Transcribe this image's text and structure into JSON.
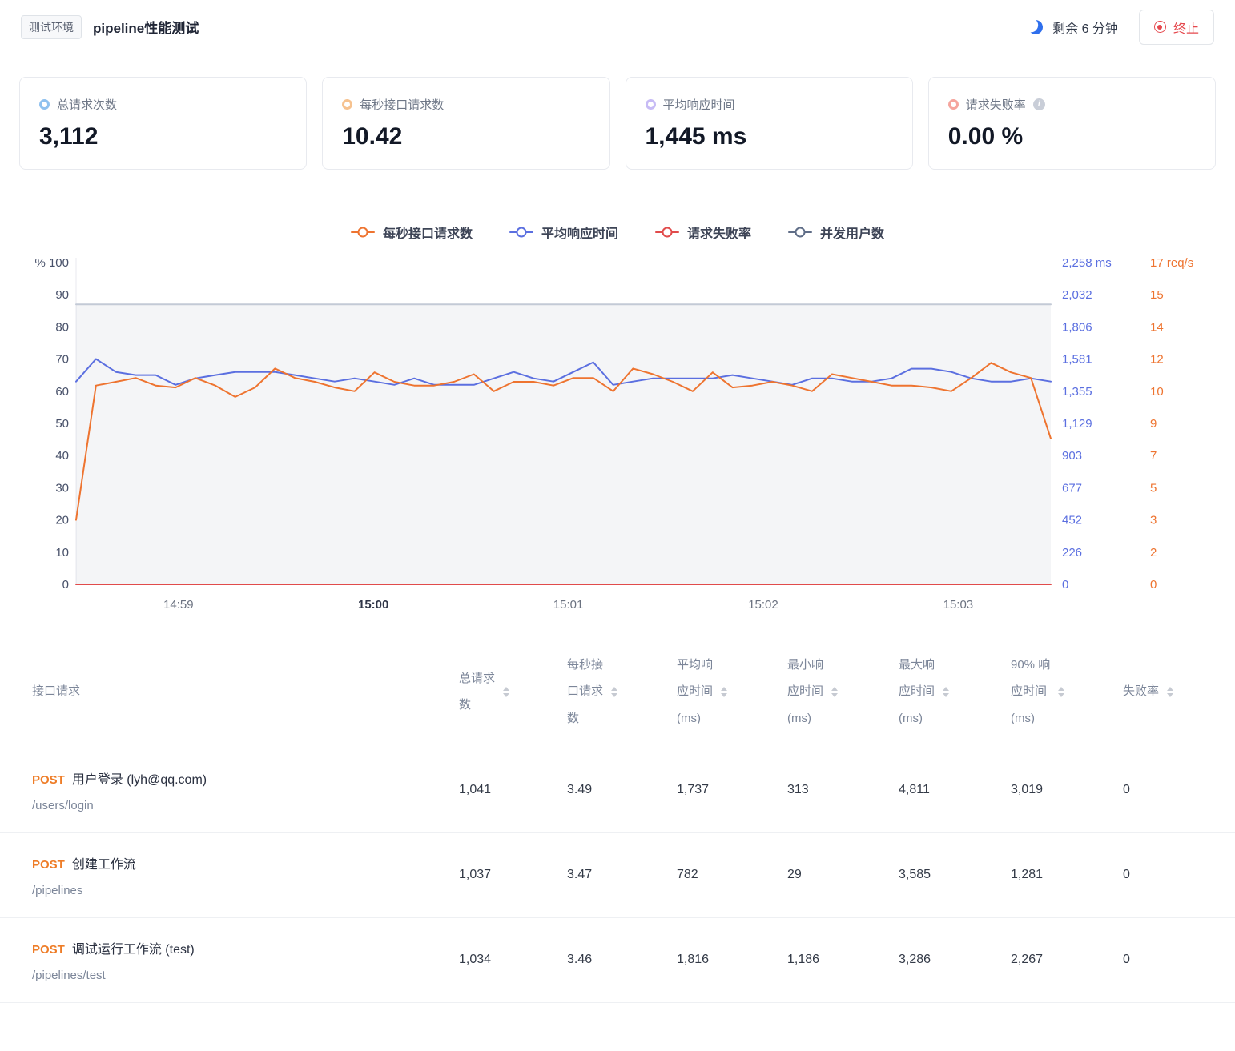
{
  "topbar": {
    "env_tag": "测试环境",
    "title": "pipeline性能测试",
    "remaining_label": "剩余 6 分钟",
    "stop_label": "终止"
  },
  "stats": [
    {
      "label": "总请求次数",
      "value": "3,112",
      "dot_color": "#8fc1ef"
    },
    {
      "label": "每秒接口请求数",
      "value": "10.42",
      "dot_color": "#f6c28f"
    },
    {
      "label": "平均响应时间",
      "value": "1,445 ms",
      "dot_color": "#c7bbf5"
    },
    {
      "label": "请求失败率",
      "value": "0.00 %",
      "dot_color": "#f5a59d"
    }
  ],
  "chart_data": {
    "type": "line",
    "title": "",
    "legend": [
      {
        "label": "每秒接口请求数",
        "color": "#ee7430"
      },
      {
        "label": "平均响应时间",
        "color": "#5b6fe0"
      },
      {
        "label": "请求失败率",
        "color": "#e14b4b"
      },
      {
        "label": "并发用户数",
        "color": "#5f6d87"
      }
    ],
    "x_ticks": [
      "14:59",
      "15:00",
      "15:01",
      "15:02",
      "15:03"
    ],
    "bold_x_tick": "15:00",
    "axis_left": [
      "% 100",
      "90",
      "80",
      "70",
      "60",
      "50",
      "40",
      "30",
      "20",
      "10",
      "0"
    ],
    "axis_right_ms": [
      "2,258 ms",
      "2,032",
      "1,806",
      "1,581",
      "1,355",
      "1,129",
      "903",
      "677",
      "452",
      "226",
      "0"
    ],
    "axis_right_reqs": [
      "17 req/s",
      "15",
      "14",
      "12",
      "10",
      "9",
      "7",
      "5",
      "3",
      "2",
      "0"
    ],
    "axes": {
      "percent": {
        "max": 100
      },
      "ms": {
        "max": 2258
      },
      "reqs": {
        "max": 17
      }
    },
    "series": [
      {
        "name": "并发用户数",
        "axis": "percent",
        "color": "#c3cad6",
        "fill": "rgba(95,109,135,0.07)",
        "values": [
          87,
          87
        ]
      },
      {
        "name": "平均响应时间",
        "axis": "ms",
        "color": "#5b6fe0",
        "values": [
          1423,
          1581,
          1490,
          1468,
          1468,
          1400,
          1445,
          1468,
          1490,
          1490,
          1490,
          1468,
          1445,
          1423,
          1445,
          1423,
          1400,
          1445,
          1400,
          1400,
          1400,
          1445,
          1490,
          1445,
          1423,
          1490,
          1558,
          1400,
          1423,
          1445,
          1445,
          1445,
          1445,
          1468,
          1445,
          1423,
          1400,
          1445,
          1445,
          1423,
          1423,
          1445,
          1513,
          1513,
          1490,
          1445,
          1423,
          1423,
          1445,
          1423
        ]
      },
      {
        "name": "每秒接口请求数",
        "axis": "reqs",
        "color": "#ee7430",
        "values": [
          3.4,
          10.5,
          10.7,
          10.9,
          10.5,
          10.4,
          10.9,
          10.5,
          9.9,
          10.4,
          11.4,
          10.9,
          10.7,
          10.4,
          10.2,
          11.2,
          10.7,
          10.5,
          10.5,
          10.7,
          11.1,
          10.2,
          10.7,
          10.7,
          10.5,
          10.9,
          10.9,
          10.2,
          11.4,
          11.1,
          10.7,
          10.2,
          11.2,
          10.4,
          10.5,
          10.7,
          10.5,
          10.2,
          11.1,
          10.9,
          10.7,
          10.5,
          10.5,
          10.4,
          10.2,
          10.9,
          11.7,
          11.2,
          10.9,
          7.7
        ]
      },
      {
        "name": "请求失败率",
        "axis": "percent",
        "color": "#e14b4b",
        "values": [
          0,
          0
        ]
      }
    ]
  },
  "table": {
    "columns": [
      {
        "lines": [
          "接口请求"
        ],
        "sortable": false
      },
      {
        "lines": [
          "总请求",
          "数"
        ],
        "sortable": true
      },
      {
        "lines": [
          "每秒接",
          "口请求",
          "数"
        ],
        "sortable": true
      },
      {
        "lines": [
          "平均响",
          "应时间",
          "(ms)"
        ],
        "sortable": true
      },
      {
        "lines": [
          "最小响",
          "应时间",
          "(ms)"
        ],
        "sortable": true
      },
      {
        "lines": [
          "最大响",
          "应时间",
          "(ms)"
        ],
        "sortable": true
      },
      {
        "lines": [
          "90% 响",
          "应时间",
          "(ms)"
        ],
        "sortable": true
      },
      {
        "lines": [
          "失败率"
        ],
        "sortable": true
      }
    ],
    "rows": [
      {
        "method": "POST",
        "name": "用户登录 (lyh@qq.com)",
        "path": "/users/login",
        "values": [
          "1,041",
          "3.49",
          "1,737",
          "313",
          "4,811",
          "3,019",
          "0"
        ]
      },
      {
        "method": "POST",
        "name": "创建工作流",
        "path": "/pipelines",
        "values": [
          "1,037",
          "3.47",
          "782",
          "29",
          "3,585",
          "1,281",
          "0"
        ]
      },
      {
        "method": "POST",
        "name": "调试运行工作流 (test)",
        "path": "/pipelines/test",
        "values": [
          "1,034",
          "3.46",
          "1,816",
          "1,186",
          "3,286",
          "2,267",
          "0"
        ]
      }
    ]
  }
}
